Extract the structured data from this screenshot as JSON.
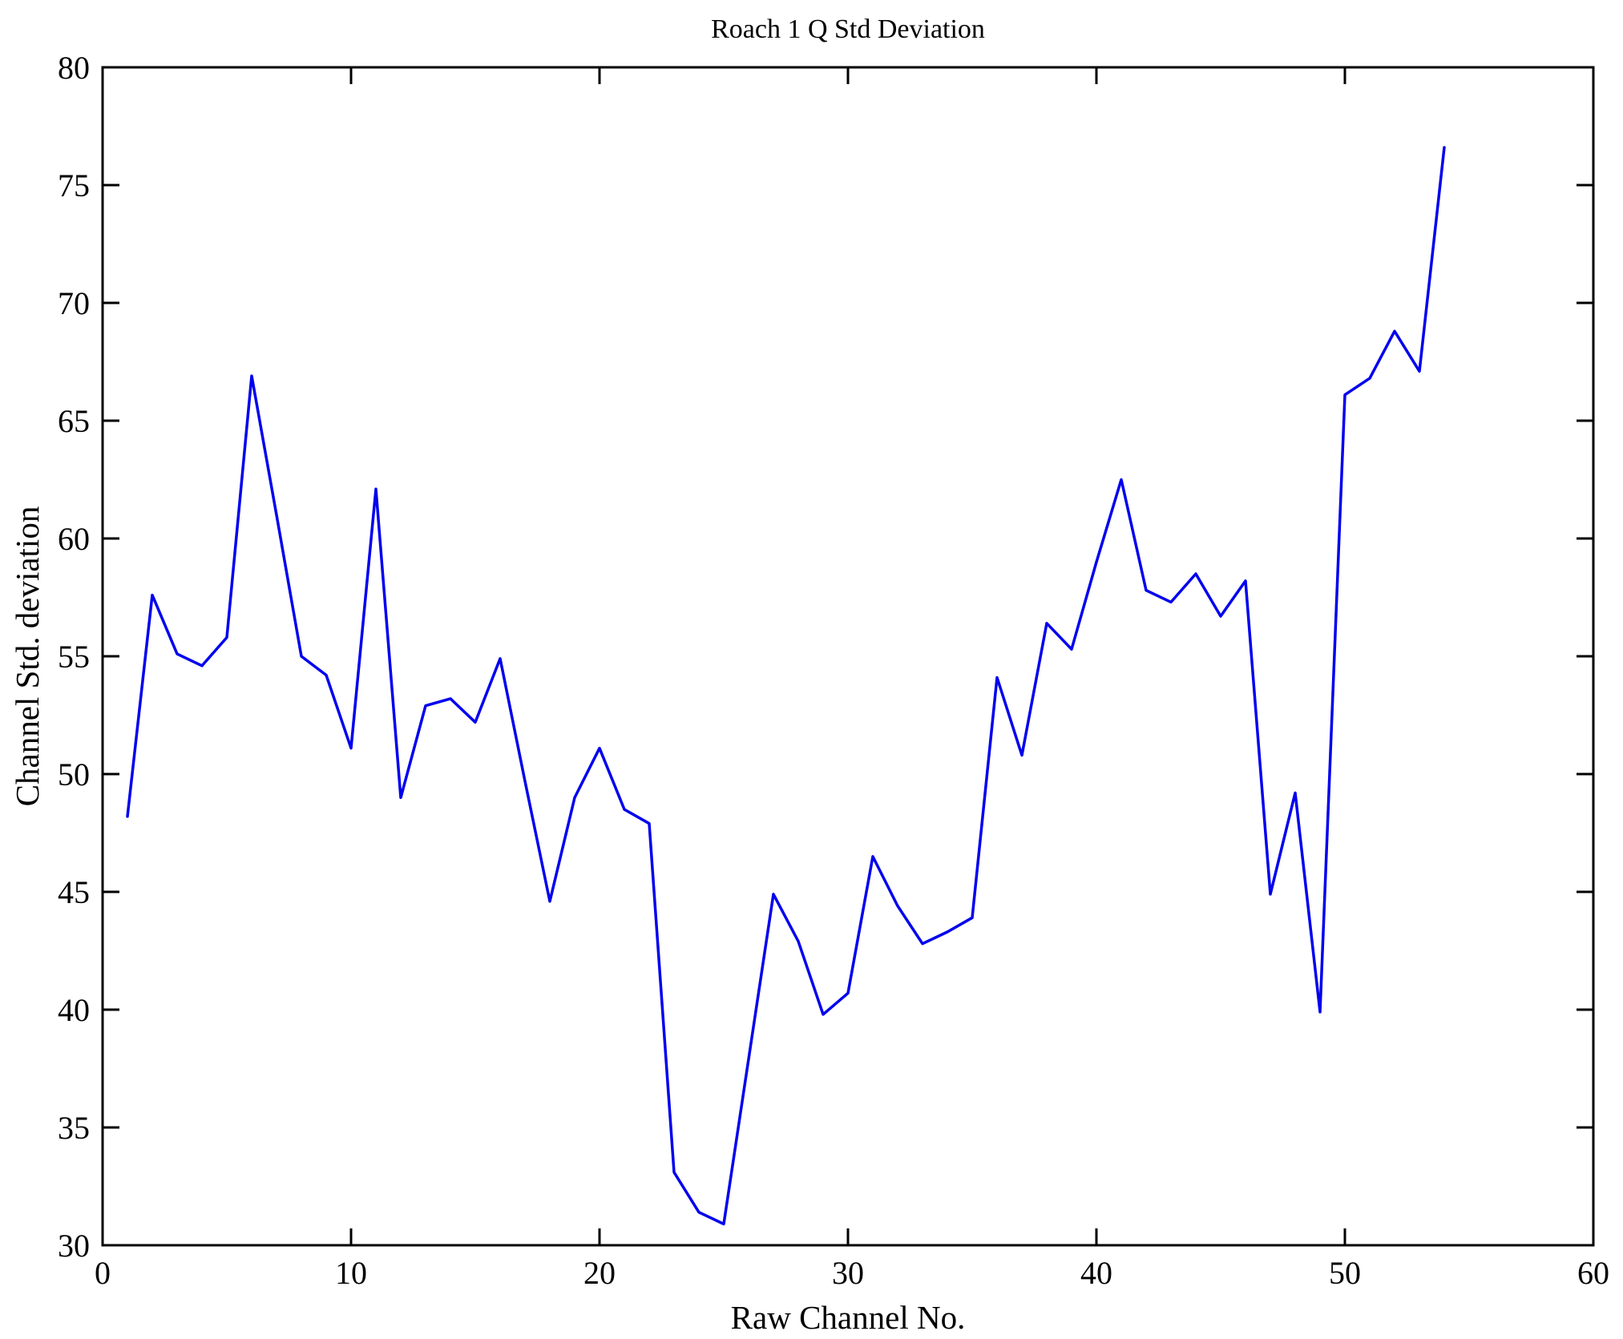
{
  "figure": {
    "title": "Roach 1 Q Std Deviation",
    "background": "#ffffff",
    "axis_color": "#000000"
  },
  "chart_data": {
    "type": "line",
    "title": "Roach 1 Q Std Deviation",
    "xlabel": "Raw Channel No.",
    "ylabel": "Channel Std. deviation",
    "xlim": [
      0,
      60
    ],
    "ylim": [
      30,
      80
    ],
    "x_ticks": [
      0,
      10,
      20,
      30,
      40,
      50,
      60
    ],
    "y_ticks": [
      30,
      35,
      40,
      45,
      50,
      55,
      60,
      65,
      70,
      75,
      80
    ],
    "grid": false,
    "legend_position": "none",
    "line_color": "#0000ee",
    "line_width": 3.5,
    "series": [
      {
        "name": "Channel Std deviation",
        "x": [
          1,
          2,
          3,
          4,
          5,
          6,
          7,
          8,
          9,
          10,
          11,
          12,
          13,
          14,
          15,
          16,
          17,
          18,
          19,
          20,
          21,
          22,
          23,
          24,
          25,
          26,
          27,
          28,
          29,
          30,
          31,
          32,
          33,
          34,
          35,
          36,
          37,
          38,
          39,
          40,
          41,
          42,
          43,
          44,
          45,
          46,
          47,
          48,
          49,
          50,
          51,
          52,
          53,
          54
        ],
        "y": [
          48.2,
          57.6,
          55.1,
          54.6,
          55.8,
          66.9,
          61.0,
          55.0,
          54.2,
          51.1,
          62.1,
          49.0,
          52.9,
          53.2,
          52.2,
          54.9,
          49.7,
          44.6,
          49.0,
          51.1,
          48.5,
          47.9,
          33.1,
          31.4,
          30.9,
          37.9,
          44.9,
          42.9,
          39.8,
          40.7,
          46.5,
          44.4,
          42.8,
          43.3,
          43.9,
          54.1,
          50.8,
          56.4,
          55.3,
          59.0,
          62.5,
          57.8,
          57.3,
          58.5,
          56.7,
          58.2,
          44.9,
          49.2,
          39.9,
          66.1,
          66.8,
          68.8,
          67.1,
          76.6
        ]
      }
    ]
  }
}
